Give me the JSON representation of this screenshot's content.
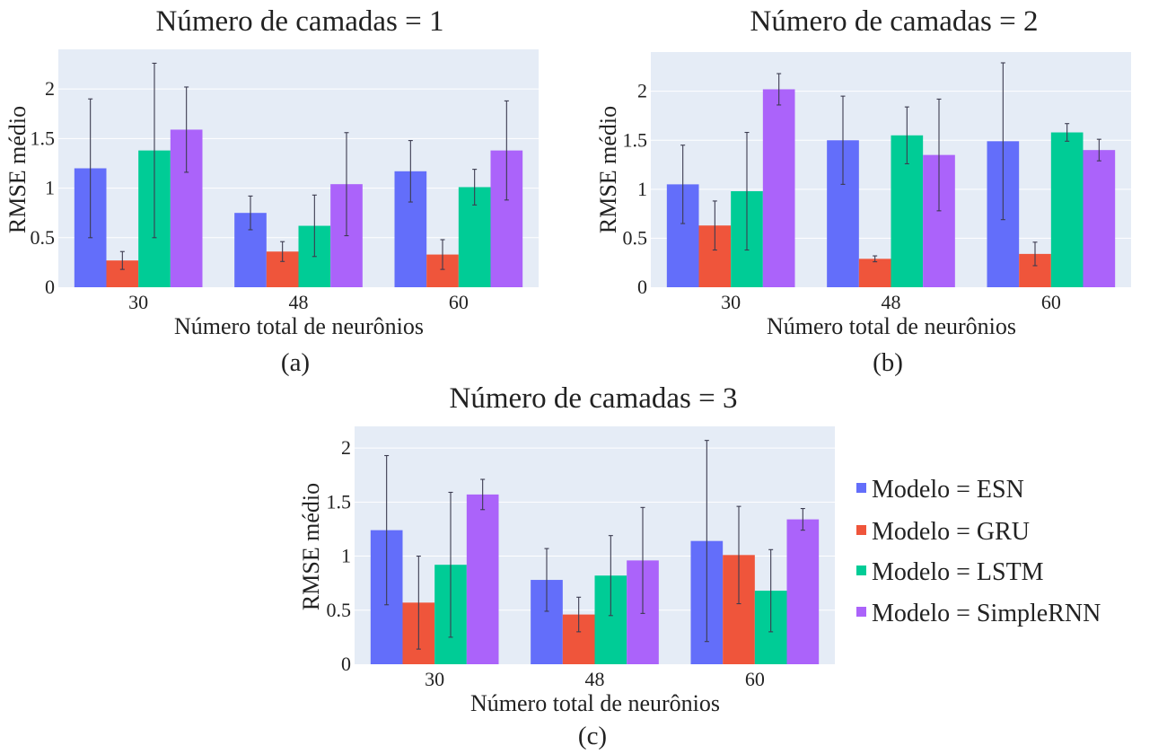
{
  "chart_data": [
    {
      "type": "bar",
      "title": "Número de camadas = 1",
      "xlabel": "Número total de neurônios",
      "ylabel": "RMSE médio",
      "caption": "(a)",
      "categories": [
        "30",
        "48",
        "60"
      ],
      "ylim": [
        0,
        2.4
      ],
      "yticks": [
        "0",
        "0.5",
        "1",
        "1.5",
        "2"
      ],
      "grid": true,
      "series": [
        {
          "name": "Modelo = ESN",
          "values": [
            1.2,
            0.75,
            1.17
          ],
          "err": [
            0.7,
            0.17,
            0.31
          ]
        },
        {
          "name": "Modelo = GRU",
          "values": [
            0.27,
            0.36,
            0.33
          ],
          "err": [
            0.09,
            0.1,
            0.15
          ]
        },
        {
          "name": "Modelo = LSTM",
          "values": [
            1.38,
            0.62,
            1.01
          ],
          "err": [
            0.88,
            0.31,
            0.18
          ]
        },
        {
          "name": "Modelo = SimpleRNN",
          "values": [
            1.59,
            1.04,
            1.38
          ],
          "err": [
            0.43,
            0.52,
            0.5
          ]
        }
      ]
    },
    {
      "type": "bar",
      "title": "Número de camadas = 2",
      "xlabel": "Número total de neurônios",
      "ylabel": "RMSE médio",
      "caption": "(b)",
      "categories": [
        "30",
        "48",
        "60"
      ],
      "ylim": [
        0,
        2.4
      ],
      "yticks": [
        "0",
        "0.5",
        "1",
        "1.5",
        "2"
      ],
      "grid": true,
      "series": [
        {
          "name": "Modelo = ESN",
          "values": [
            1.05,
            1.5,
            1.49
          ],
          "err": [
            0.4,
            0.45,
            0.8
          ]
        },
        {
          "name": "Modelo = GRU",
          "values": [
            0.63,
            0.29,
            0.34
          ],
          "err": [
            0.25,
            0.03,
            0.12
          ]
        },
        {
          "name": "Modelo = LSTM",
          "values": [
            0.98,
            1.55,
            1.58
          ],
          "err": [
            0.6,
            0.29,
            0.09
          ]
        },
        {
          "name": "Modelo = SimpleRNN",
          "values": [
            2.02,
            1.35,
            1.4
          ],
          "err": [
            0.16,
            0.57,
            0.11
          ]
        }
      ]
    },
    {
      "type": "bar",
      "title": "Número de camadas = 3",
      "xlabel": "Número total de neurônios",
      "ylabel": "RMSE médio",
      "caption": "(c)",
      "categories": [
        "30",
        "48",
        "60"
      ],
      "ylim": [
        0,
        2.2
      ],
      "yticks": [
        "0",
        "0.5",
        "1",
        "1.5",
        "2"
      ],
      "grid": true,
      "series": [
        {
          "name": "Modelo = ESN",
          "values": [
            1.24,
            0.78,
            1.14
          ],
          "err": [
            0.69,
            0.29,
            0.93
          ]
        },
        {
          "name": "Modelo = GRU",
          "values": [
            0.57,
            0.46,
            1.01
          ],
          "err": [
            0.43,
            0.16,
            0.45
          ]
        },
        {
          "name": "Modelo = LSTM",
          "values": [
            0.92,
            0.82,
            0.68
          ],
          "err": [
            0.67,
            0.37,
            0.38
          ]
        },
        {
          "name": "Modelo = SimpleRNN",
          "values": [
            1.57,
            0.96,
            1.34
          ],
          "err": [
            0.14,
            0.49,
            0.1
          ]
        }
      ]
    }
  ],
  "legend": {
    "placement": "right of panel (c)",
    "items": [
      "Modelo = ESN",
      "Modelo = GRU",
      "Modelo = LSTM",
      "Modelo = SimpleRNN"
    ]
  },
  "colors": {
    "Modelo = ESN": "#636efa",
    "Modelo = GRU": "#ef553b",
    "Modelo = LSTM": "#00cc96",
    "Modelo = SimpleRNN": "#ab63fa",
    "plot_background": "#e5ecf6"
  }
}
